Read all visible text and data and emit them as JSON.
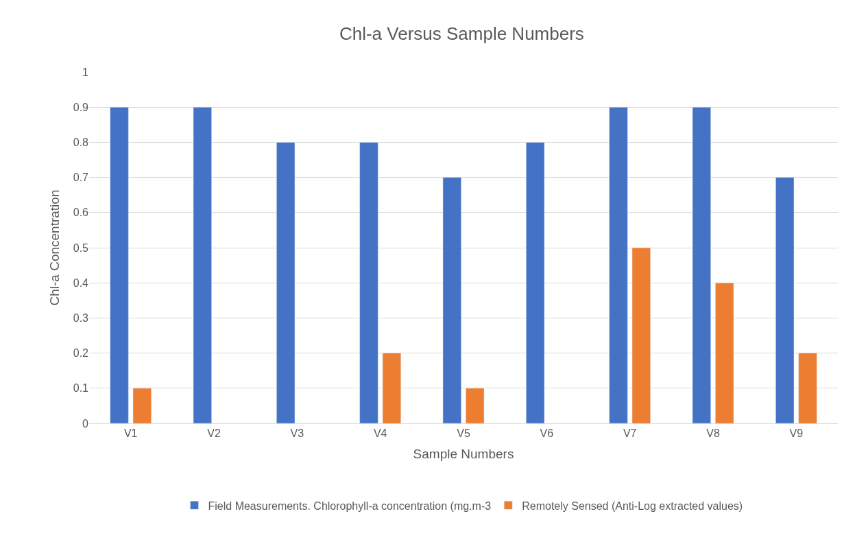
{
  "chart_data": {
    "type": "bar",
    "title": "Chl-a Versus Sample Numbers",
    "xlabel": "Sample Numbers",
    "ylabel": "Chl-a Concentration",
    "categories": [
      "V1",
      "V2",
      "V3",
      "V4",
      "V5",
      "V6",
      "V7",
      "V8",
      "V9"
    ],
    "series": [
      {
        "name": "Field Measurements. Chlorophyll-a concentration (mg.m-3",
        "color": "#4472c4",
        "values": [
          0.9,
          0.9,
          0.8,
          0.8,
          0.7,
          0.8,
          0.9,
          0.9,
          0.7
        ]
      },
      {
        "name": "Remotely Sensed (Anti-Log extracted values)",
        "color": "#ed7d31",
        "values": [
          0.1,
          null,
          null,
          0.2,
          0.1,
          null,
          0.5,
          0.4,
          0.2
        ]
      }
    ],
    "ylim": [
      0,
      1
    ],
    "yticks": [
      0,
      0.1,
      0.2,
      0.3,
      0.4,
      0.5,
      0.6,
      0.7,
      0.8,
      0.9,
      1
    ],
    "grid": "y",
    "legend": "bottom"
  }
}
